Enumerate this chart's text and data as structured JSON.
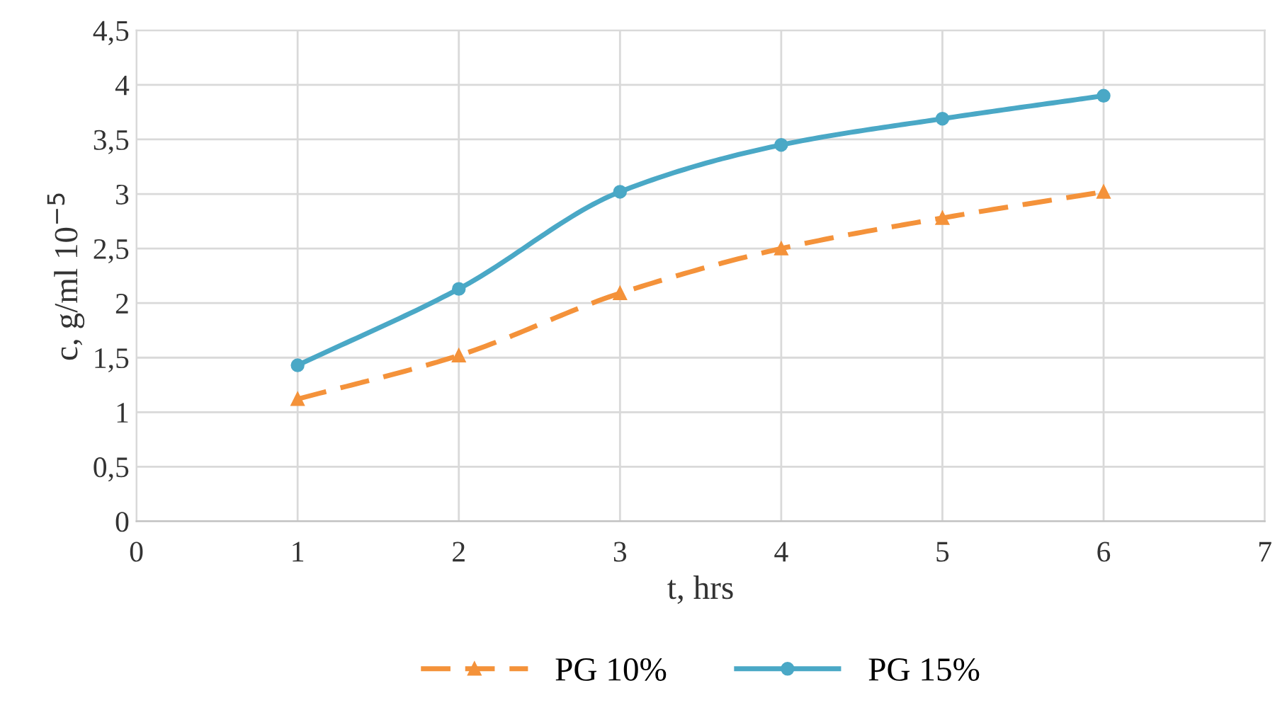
{
  "chart_data": {
    "type": "line",
    "xlabel": "t, hrs",
    "ylabel": "c, g/ml 10$^{−5}$",
    "x": [
      1,
      2,
      3,
      4,
      5,
      6
    ],
    "series": [
      {
        "name": "PG 10%",
        "color": "#f4923a",
        "values": [
          1.12,
          1.52,
          2.09,
          2.5,
          2.78,
          3.02
        ],
        "marker": "triangle",
        "line_style": "dashed"
      },
      {
        "name": "PG 15%",
        "color": "#4aa8c6",
        "values": [
          1.43,
          2.13,
          3.02,
          3.45,
          3.69,
          3.9
        ],
        "marker": "circle",
        "line_style": "solid"
      }
    ],
    "xlim": [
      0,
      7
    ],
    "xticks": [
      0,
      1,
      2,
      3,
      4,
      5,
      6,
      7
    ],
    "ylim": [
      0,
      4.5
    ],
    "yticks": [
      0,
      {
        "value": 0.5,
        "label": "0,5"
      },
      1,
      {
        "value": 1.5,
        "label": "1,5"
      },
      2,
      {
        "value": 2.5,
        "label": "2,5"
      },
      3,
      {
        "value": 3.5,
        "label": "3,5"
      },
      4,
      {
        "value": 4.5,
        "label": "4,5"
      }
    ],
    "grid": true,
    "legend": "bottom"
  }
}
